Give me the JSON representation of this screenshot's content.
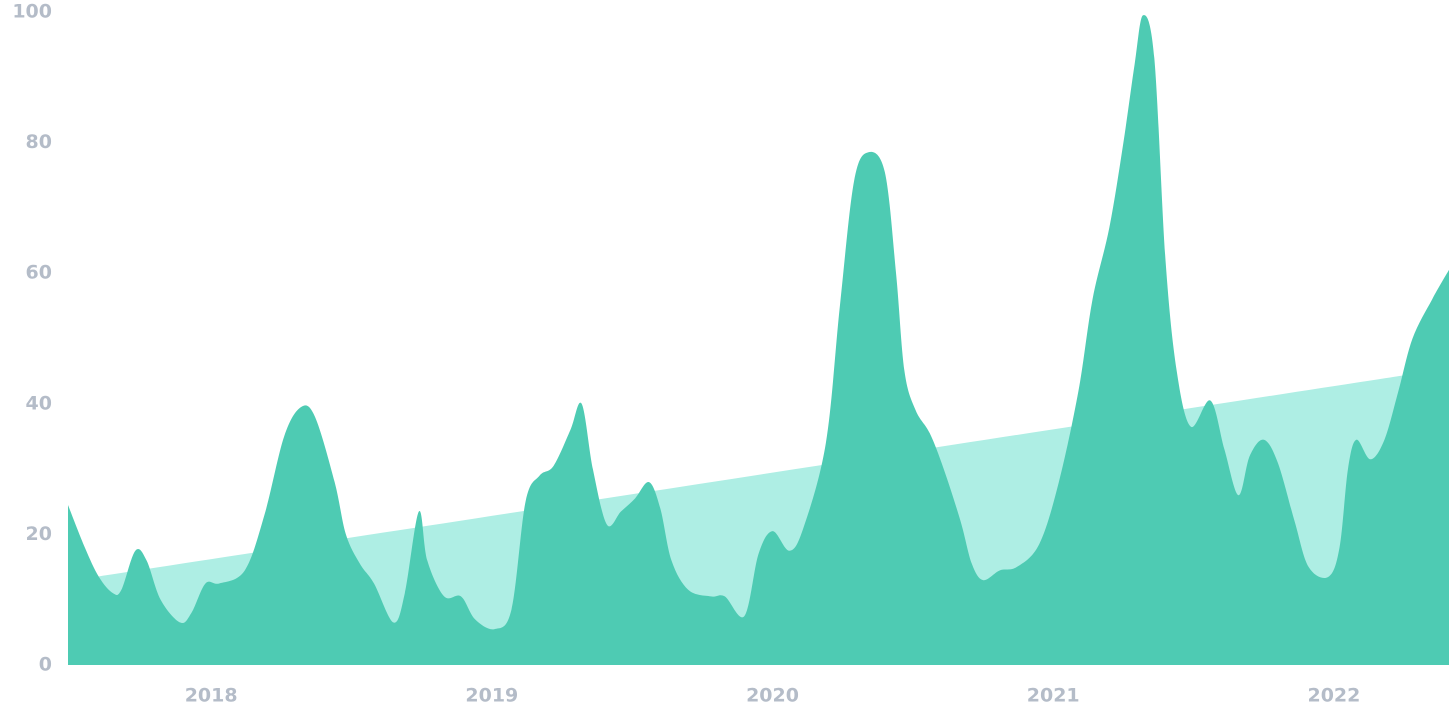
{
  "chart_data": {
    "type": "area",
    "xlim": [
      2017.49,
      2022.41
    ],
    "xticks": [
      2018,
      2019,
      2020,
      2021,
      2022
    ],
    "ylim": [
      0,
      100
    ],
    "yticks": [
      0,
      20,
      40,
      60,
      80,
      100
    ],
    "series": [
      {
        "color": "#aeeee4",
        "x": [
          2017.59,
          2022.27
        ],
        "values": [
          13.5,
          44.5
        ]
      },
      {
        "color": "#4ecbb3",
        "x": [
          2017.49,
          2017.55,
          2017.6,
          2017.65,
          2017.68,
          2017.73,
          2017.77,
          2017.82,
          2017.89,
          2017.93,
          2017.98,
          2018.03,
          2018.12,
          2018.19,
          2018.26,
          2018.32,
          2018.37,
          2018.44,
          2018.48,
          2018.53,
          2018.58,
          2018.65,
          2018.69,
          2018.74,
          2018.77,
          2018.83,
          2018.89,
          2018.94,
          2019.01,
          2019.07,
          2019.12,
          2019.17,
          2019.22,
          2019.28,
          2019.32,
          2019.36,
          2019.41,
          2019.46,
          2019.51,
          2019.56,
          2019.6,
          2019.64,
          2019.7,
          2019.78,
          2019.83,
          2019.9,
          2019.95,
          2020.0,
          2020.06,
          2020.11,
          2020.19,
          2020.24,
          2020.29,
          2020.34,
          2020.4,
          2020.44,
          2020.47,
          2020.51,
          2020.56,
          2020.61,
          2020.67,
          2020.71,
          2020.75,
          2020.81,
          2020.87,
          2020.95,
          2021.02,
          2021.09,
          2021.14,
          2021.2,
          2021.25,
          2021.29,
          2021.32,
          2021.36,
          2021.4,
          2021.44,
          2021.49,
          2021.56,
          2021.61,
          2021.66,
          2021.7,
          2021.75,
          2021.8,
          2021.86,
          2021.91,
          2021.98,
          2022.02,
          2022.05,
          2022.08,
          2022.13,
          2022.18,
          2022.23,
          2022.28,
          2022.35,
          2022.41
        ],
        "values": [
          24.5,
          18,
          13.5,
          11,
          11.5,
          17.5,
          16,
          10,
          6.5,
          8,
          12.5,
          12.5,
          14.5,
          23,
          35,
          39.5,
          38,
          28,
          20,
          15.5,
          12.5,
          6.5,
          11,
          23.5,
          16,
          10.5,
          10.5,
          7,
          5.5,
          8.5,
          25,
          29,
          30.5,
          36,
          40,
          30,
          21.5,
          23.5,
          25.5,
          28,
          24,
          16,
          11.5,
          10.5,
          10.5,
          7.5,
          17,
          20.5,
          17.5,
          21,
          34,
          55,
          74,
          78.5,
          75.5,
          60,
          45,
          39,
          35.5,
          30,
          22,
          15.5,
          13,
          14.5,
          15,
          18.5,
          28,
          42,
          56,
          67,
          80,
          92,
          99.5,
          93,
          62,
          45,
          36.5,
          40.5,
          33,
          26,
          32,
          34.5,
          31,
          22,
          15,
          13.5,
          18,
          30,
          34.5,
          31.5,
          34.5,
          42,
          50,
          56,
          60.5
        ]
      }
    ]
  }
}
